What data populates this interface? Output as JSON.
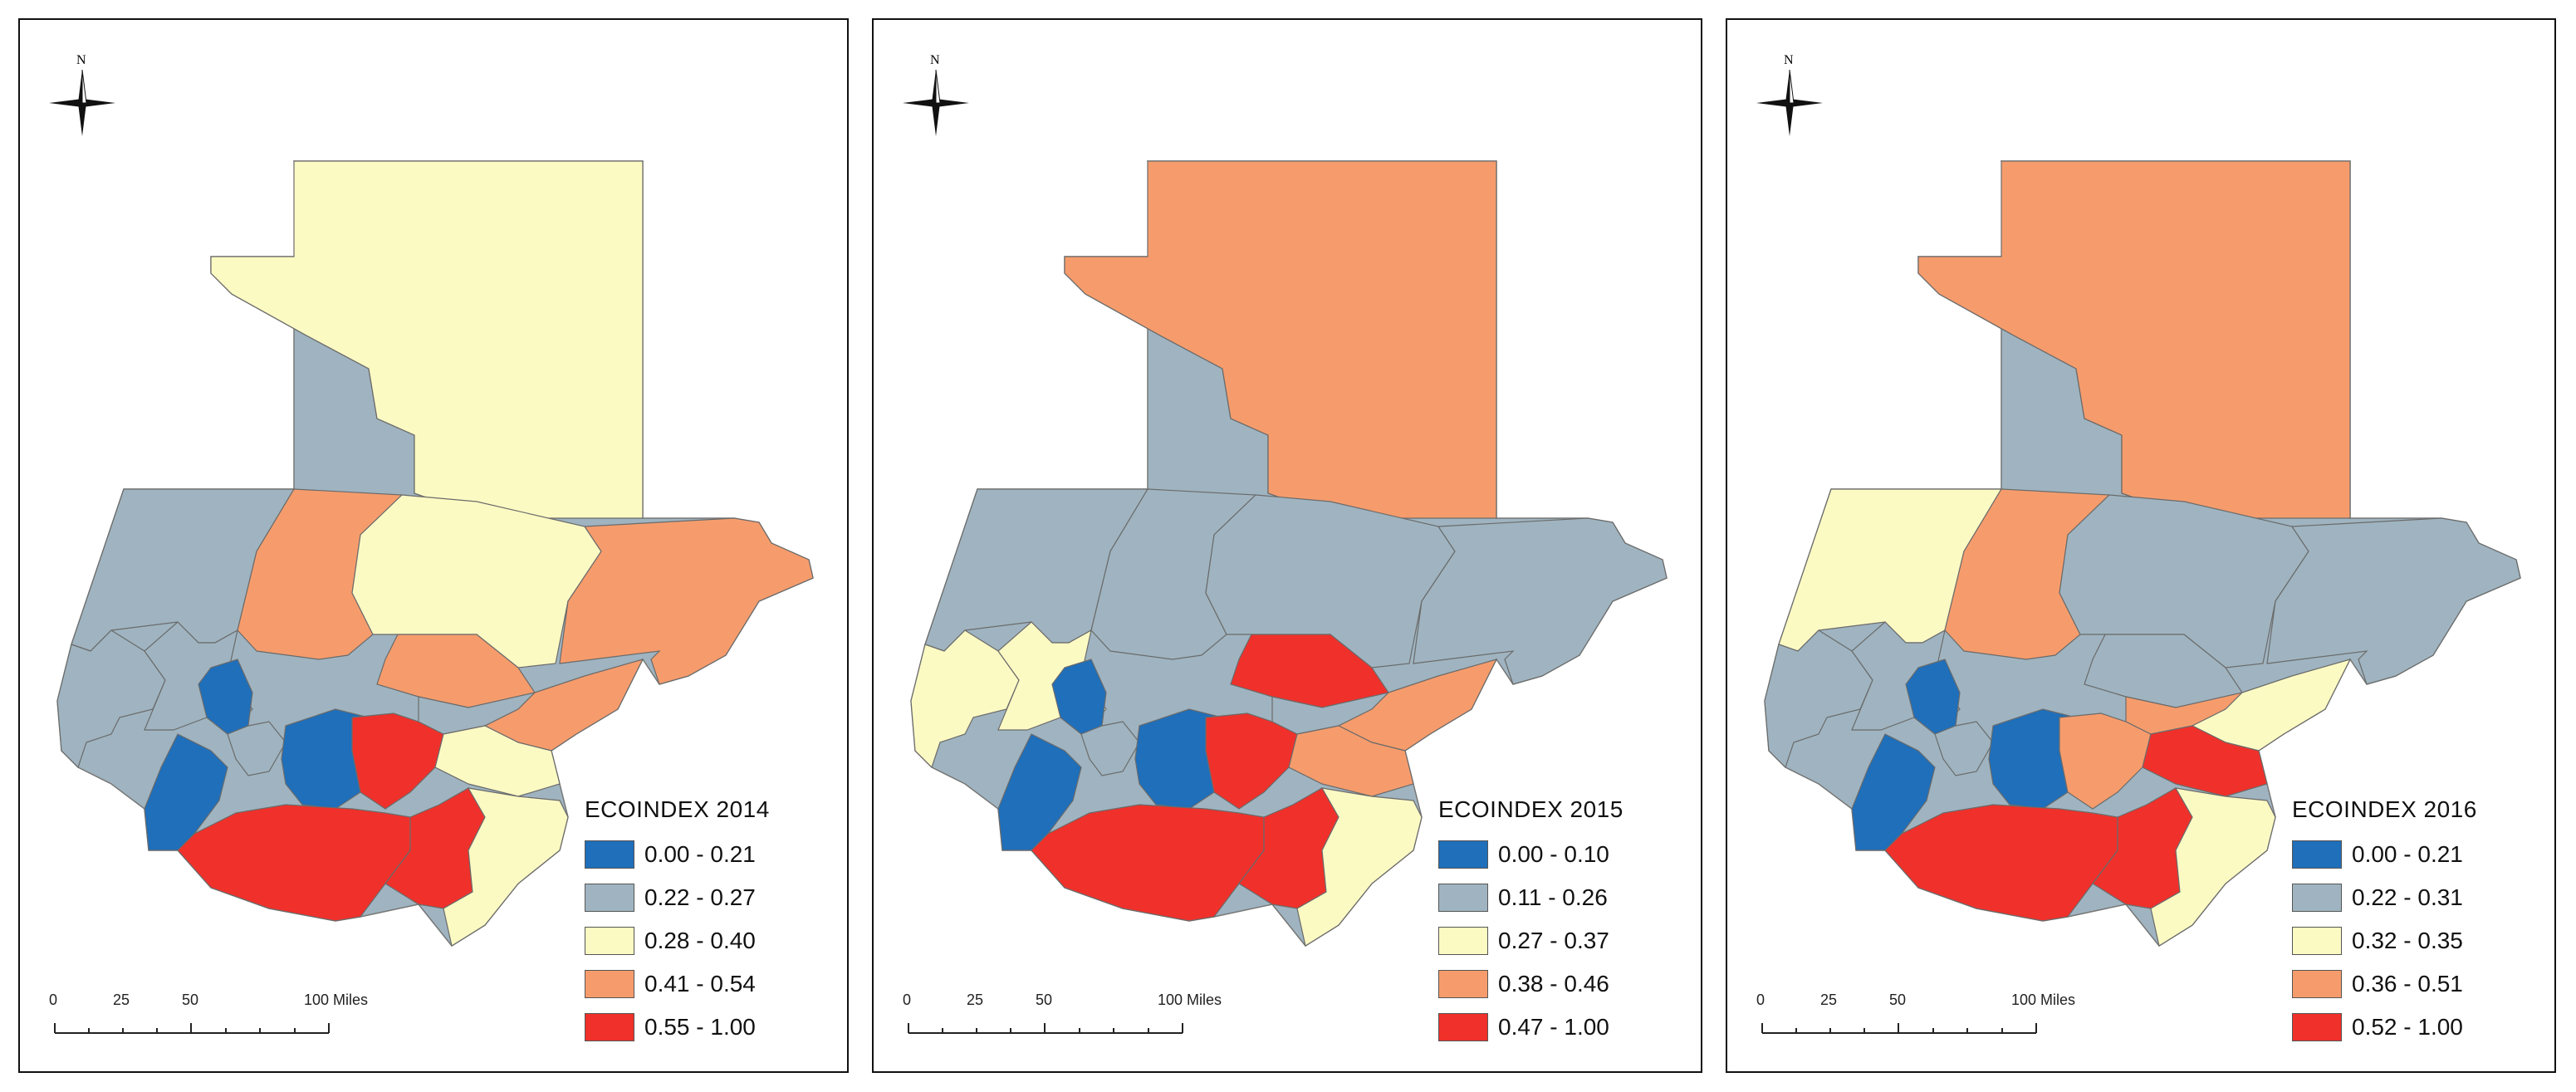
{
  "figure": {
    "panels": [
      {
        "legend_title": "ECOINDEX 2014",
        "classes": [
          {
            "label": "0.00 - 0.21",
            "color": "#1f6fba"
          },
          {
            "label": "0.22 - 0.27",
            "color": "#9fb4c0"
          },
          {
            "label": "0.28 - 0.40",
            "color": "#fcfac3"
          },
          {
            "label": "0.41 - 0.54",
            "color": "#f69c6c"
          },
          {
            "label": "0.55 - 1.00",
            "color": "#f0302a"
          }
        ],
        "region_classes": [
          2,
          1,
          3,
          2,
          3,
          1,
          3,
          1,
          0,
          1,
          0,
          4,
          1,
          3,
          2,
          0,
          4,
          4,
          2
        ]
      },
      {
        "legend_title": "ECOINDEX 2015",
        "classes": [
          {
            "label": "0.00 - 0.10",
            "color": "#1f6fba"
          },
          {
            "label": "0.11 - 0.26",
            "color": "#9fb4c0"
          },
          {
            "label": "0.27 - 0.37",
            "color": "#fcfac3"
          },
          {
            "label": "0.38 - 0.46",
            "color": "#f69c6c"
          },
          {
            "label": "0.47 - 1.00",
            "color": "#f0302a"
          }
        ],
        "region_classes": [
          3,
          1,
          1,
          1,
          1,
          2,
          4,
          2,
          0,
          1,
          0,
          4,
          1,
          3,
          3,
          0,
          4,
          4,
          2
        ]
      },
      {
        "legend_title": "ECOINDEX 2016",
        "classes": [
          {
            "label": "0.00 - 0.21",
            "color": "#1f6fba"
          },
          {
            "label": "0.22 - 0.31",
            "color": "#9fb4c0"
          },
          {
            "label": "0.32 - 0.35",
            "color": "#fcfac3"
          },
          {
            "label": "0.36 - 0.51",
            "color": "#f69c6c"
          },
          {
            "label": "0.52 - 1.00",
            "color": "#f0302a"
          }
        ],
        "region_classes": [
          3,
          2,
          3,
          1,
          1,
          1,
          1,
          1,
          0,
          1,
          0,
          3,
          3,
          2,
          4,
          0,
          4,
          4,
          2
        ]
      }
    ],
    "scale_bar": {
      "ticks": [
        "0",
        "25",
        "50",
        "100 Miles"
      ]
    },
    "north_label": "N"
  }
}
